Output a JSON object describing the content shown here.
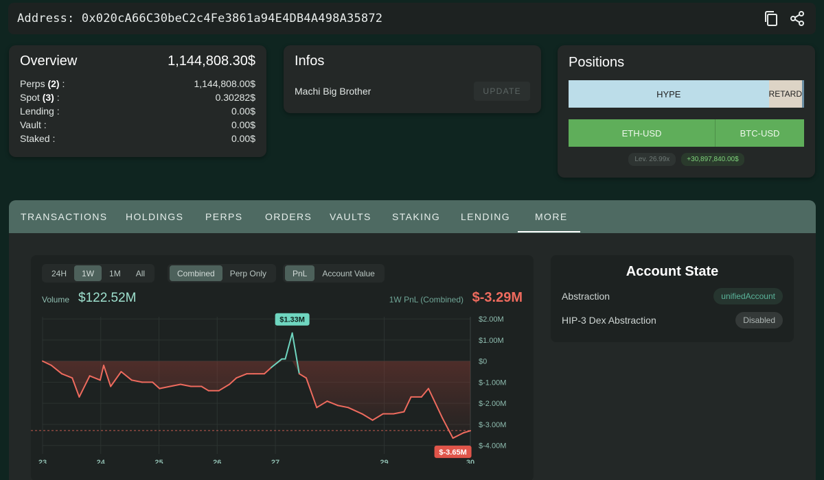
{
  "address": {
    "label": "Address:",
    "value": "0x020cA66C30beC2c4Fe3861a94E4DB4A498A35872"
  },
  "overview": {
    "title": "Overview",
    "total": "1,144,808.30$",
    "rows": [
      {
        "label": "Perps",
        "count": "(2)",
        "suffix": " :",
        "value": "1,144,808.00$"
      },
      {
        "label": "Spot",
        "count": "(3)",
        "suffix": " :",
        "value": "0.30282$"
      },
      {
        "label": "Lending :",
        "count": "",
        "suffix": "",
        "value": "0.00$"
      },
      {
        "label": "Vault :",
        "count": "",
        "suffix": "",
        "value": "0.00$"
      },
      {
        "label": "Staked :",
        "count": "",
        "suffix": "",
        "value": "0.00$"
      }
    ]
  },
  "infos": {
    "title": "Infos",
    "name": "Machi Big Brother",
    "update_label": "UPDATE"
  },
  "positions": {
    "title": "Positions",
    "bar1": [
      {
        "label": "HYPE",
        "color": "#bcdde9"
      },
      {
        "label": "RETARD",
        "color": "#ddd4c6"
      }
    ],
    "bar2": [
      {
        "label": "ETH-USD",
        "color": "#5fae5a"
      },
      {
        "label": "BTC-USD",
        "color": "#5fae5a"
      }
    ],
    "leverage": "Lev. 26.99x",
    "pnl": "+30,897,840.00$"
  },
  "tabs": [
    "TRANSACTIONS",
    "HOLDINGS",
    "PERPS",
    "ORDERS",
    "VAULTS",
    "STAKING",
    "LENDING",
    "MORE"
  ],
  "active_tab": "MORE",
  "chart_controls": {
    "ranges": [
      "24H",
      "1W",
      "1M",
      "All"
    ],
    "range_active": "1W",
    "modes": [
      "Combined",
      "Perp Only"
    ],
    "mode_active": "Combined",
    "metrics": [
      "PnL",
      "Account Value"
    ],
    "metric_active": "PnL"
  },
  "volume": {
    "label": "Volume",
    "value": "$122.52M"
  },
  "pnl_summary": {
    "label": "1W PnL (Combined)",
    "value": "$-3.29M"
  },
  "chart_data": {
    "type": "area",
    "title": "",
    "xlabel": "",
    "ylabel": "",
    "x_ticks": [
      {
        "label": "23",
        "x": 0
      },
      {
        "label": "24",
        "x": 1
      },
      {
        "label": "25",
        "x": 2
      },
      {
        "label": "26",
        "x": 3
      },
      {
        "label": "27",
        "x": 4
      },
      {
        "label": "29",
        "x": 5.87
      },
      {
        "label": "30",
        "x": 7.35
      }
    ],
    "y_ticks": [
      "$2.00M",
      "$1.00M",
      "$0",
      "$-1.00M",
      "$-2.00M",
      "$-3.00M",
      "$-4.00M"
    ],
    "y_tick_values": [
      2,
      1,
      0,
      -1,
      -2,
      -3,
      -4
    ],
    "ylim": [
      -4.4,
      2.1
    ],
    "xlim": [
      0,
      7.35
    ],
    "unit": "$M",
    "series": [
      {
        "values": [
          [
            0.0,
            0.0
          ],
          [
            0.15,
            -0.2
          ],
          [
            0.33,
            -0.6
          ],
          [
            0.51,
            -0.8
          ],
          [
            0.63,
            -1.7
          ],
          [
            0.81,
            -0.7
          ],
          [
            0.99,
            -0.9
          ],
          [
            1.05,
            -0.2
          ],
          [
            1.17,
            -1.2
          ],
          [
            1.35,
            -0.5
          ],
          [
            1.53,
            -0.9
          ],
          [
            1.71,
            -1.0
          ],
          [
            1.89,
            -1.0
          ],
          [
            2.01,
            -1.3
          ],
          [
            2.19,
            -1.2
          ],
          [
            2.37,
            -1.1
          ],
          [
            2.55,
            -1.2
          ],
          [
            2.73,
            -1.2
          ],
          [
            2.85,
            -1.4
          ],
          [
            3.03,
            -1.4
          ],
          [
            3.21,
            -1.1
          ],
          [
            3.33,
            -0.8
          ],
          [
            3.51,
            -0.6
          ],
          [
            3.63,
            -0.6
          ],
          [
            3.81,
            -0.6
          ],
          [
            3.93,
            -0.3
          ],
          [
            4.11,
            0.1
          ],
          [
            4.17,
            0.1
          ],
          [
            4.29,
            1.33
          ],
          [
            4.41,
            -0.6
          ],
          [
            4.53,
            -0.8
          ],
          [
            4.71,
            -2.2
          ],
          [
            4.89,
            -1.9
          ],
          [
            5.07,
            -2.1
          ],
          [
            5.25,
            -2.2
          ],
          [
            5.49,
            -2.5
          ],
          [
            5.67,
            -2.8
          ],
          [
            5.85,
            -2.5
          ],
          [
            6.03,
            -2.5
          ],
          [
            6.21,
            -2.4
          ],
          [
            6.33,
            -1.7
          ],
          [
            6.51,
            -1.7
          ],
          [
            6.63,
            -1.3
          ],
          [
            6.87,
            -2.7
          ],
          [
            7.05,
            -3.65
          ],
          [
            7.23,
            -3.4
          ],
          [
            7.35,
            -3.3
          ]
        ]
      }
    ],
    "threshold_segment_color": "#6fd6c0",
    "line_color": "#ef6b5e",
    "max_label": "$1.33M",
    "min_label": "$-3.65M",
    "reference_line": -3.29,
    "grid": true
  },
  "account_state": {
    "title": "Account State",
    "rows": [
      {
        "label": "Abstraction",
        "value": "unifiedAccount"
      },
      {
        "label": "HIP-3 Dex Abstraction",
        "value": "Disabled"
      }
    ]
  }
}
